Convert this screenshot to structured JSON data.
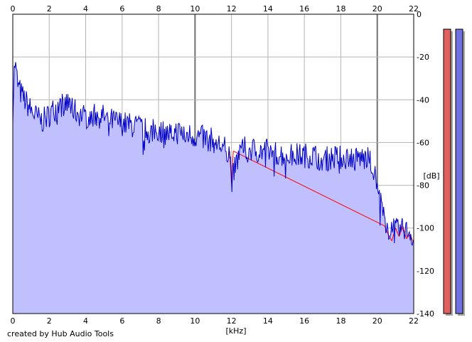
{
  "chart_data": {
    "type": "area",
    "title": "",
    "xlabel": "[kHz]",
    "ylabel": "[dB]",
    "xlim": [
      0,
      22
    ],
    "ylim": [
      -140,
      0
    ],
    "x_ticks": [
      "0",
      "2",
      "4",
      "6",
      "8",
      "10",
      "12",
      "14",
      "16",
      "18",
      "20",
      "22"
    ],
    "y_ticks": [
      "0",
      "-20",
      "-40",
      "-60",
      "-80",
      "-100",
      "-120",
      "-140"
    ],
    "grid": true,
    "series": [
      {
        "channel": "right",
        "color": "#0000c8",
        "fill": "#c0c0ff",
        "x": [
          0,
          0.1,
          0.2,
          0.3,
          0.5,
          0.8,
          1.0,
          1.3,
          1.6,
          1.9,
          2.2,
          2.5,
          2.8,
          3.1,
          3.5,
          4.0,
          4.5,
          5.0,
          5.5,
          6.0,
          6.5,
          7.0,
          7.5,
          8.0,
          8.5,
          9.0,
          9.5,
          10.0,
          10.5,
          11.0,
          11.5,
          11.9,
          12.0,
          12.5,
          13.0,
          13.5,
          14.0,
          14.5,
          15.0,
          15.5,
          16.0,
          16.5,
          17.0,
          17.5,
          18.0,
          18.5,
          19.0,
          19.5,
          19.8,
          20.0,
          20.2,
          20.4,
          20.6,
          20.8,
          21.0,
          21.2,
          21.4,
          21.6,
          21.8,
          22.0
        ],
        "y": [
          -45,
          -22,
          -28,
          -34,
          -38,
          -42,
          -45,
          -48,
          -50,
          -48,
          -45,
          -43,
          -42,
          -42,
          -46,
          -48,
          -47,
          -48,
          -50,
          -51,
          -52,
          -53,
          -55,
          -54,
          -56,
          -55,
          -56,
          -57,
          -58,
          -59,
          -62,
          -64,
          -78,
          -63,
          -63,
          -64,
          -64,
          -65,
          -66,
          -66,
          -66,
          -66,
          -68,
          -67,
          -67,
          -67,
          -67,
          -68,
          -72,
          -82,
          -87,
          -97,
          -101,
          -99,
          -100,
          -101,
          -100,
          -101,
          -102,
          -106
        ]
      },
      {
        "channel": "left",
        "color": "#ff0000",
        "x": [
          11.9,
          12.0,
          12.1,
          20.4,
          20.6,
          20.8,
          21.0,
          21.2,
          21.4,
          21.6,
          21.8,
          22.0
        ],
        "y": [
          -64,
          -79,
          -64,
          -99,
          -103,
          -106,
          -100,
          -104,
          -99,
          -105,
          -103,
          -107
        ]
      }
    ],
    "level_meters": [
      {
        "channel": "left",
        "color": "#e06060",
        "level_db": -7
      },
      {
        "channel": "right",
        "color": "#7070e0",
        "level_db": -7
      }
    ]
  },
  "credit": "created by Hub Audio Tools"
}
